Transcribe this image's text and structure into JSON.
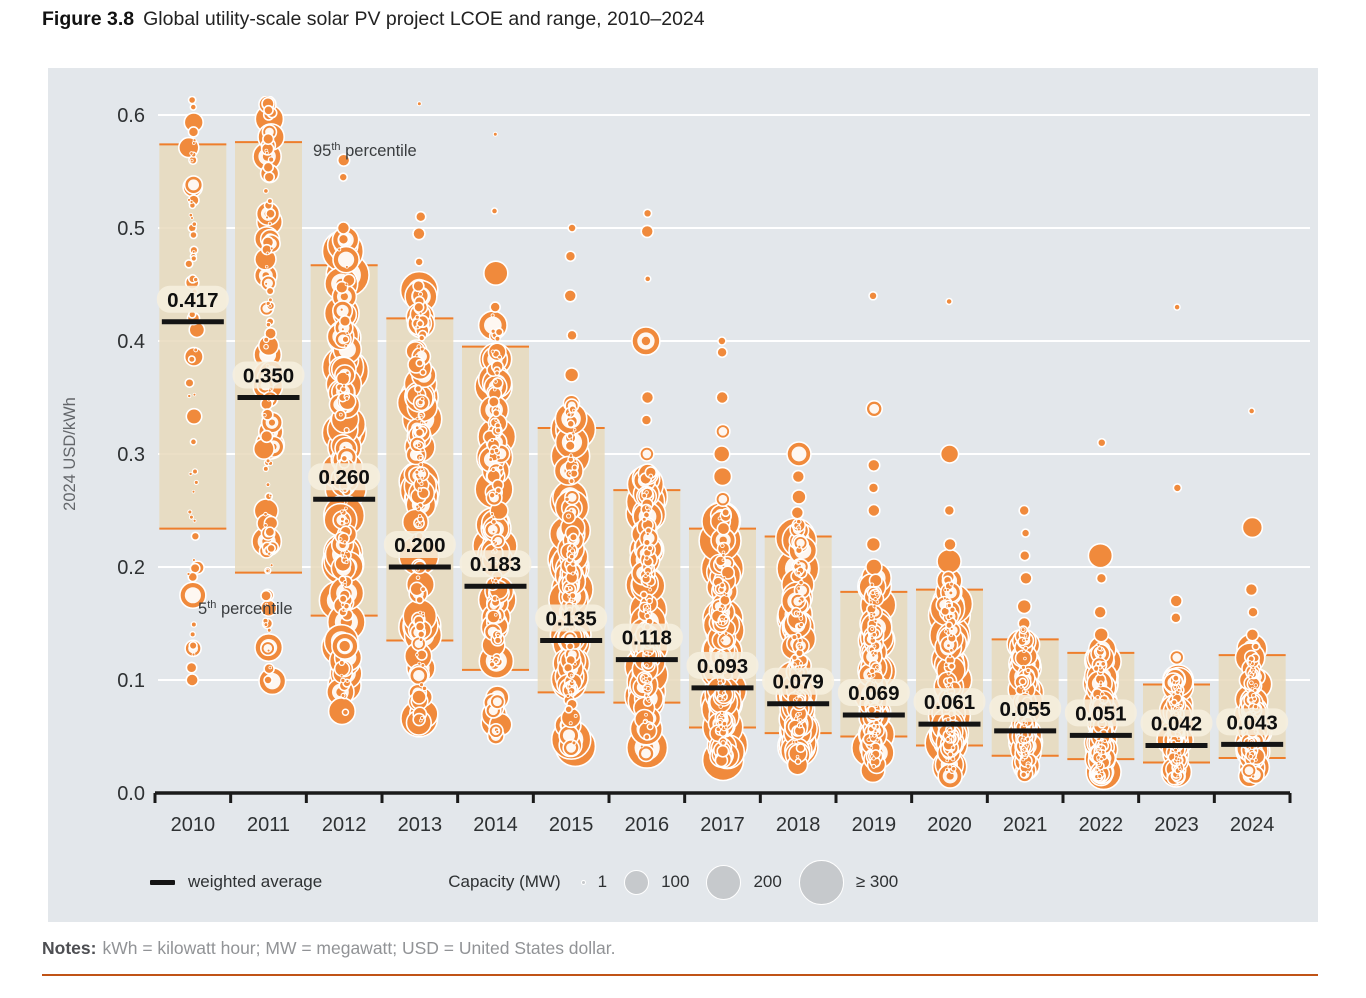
{
  "figure": {
    "label": "Figure 3.8",
    "title": "Global utility-scale solar PV project LCOE and range, 2010–2024"
  },
  "notes": {
    "label": "Notes:",
    "text": "kWh = kilowatt hour; MW = megawatt; USD = United States dollar."
  },
  "chart_data": {
    "type": "scatter",
    "subtype": "bubble-swarm-with-percentile-bands",
    "title": "Global utility-scale solar PV project LCOE and range, 2010–2024",
    "ylabel": "2024 USD/kWh",
    "xlabel": "",
    "ylim": [
      0.0,
      0.62
    ],
    "yticks": [
      0.0,
      0.1,
      0.2,
      0.3,
      0.4,
      0.5,
      0.6
    ],
    "ytick_labels": [
      "0.0",
      "0.1",
      "0.2",
      "0.3",
      "0.4",
      "0.5",
      "0.6"
    ],
    "grid": "horizontal-white",
    "categories": [
      "2010",
      "2011",
      "2012",
      "2013",
      "2014",
      "2015",
      "2016",
      "2017",
      "2018",
      "2019",
      "2020",
      "2021",
      "2022",
      "2023",
      "2024"
    ],
    "series": [
      {
        "name": "weighted average",
        "values": [
          0.417,
          0.35,
          0.26,
          0.2,
          0.183,
          0.135,
          0.118,
          0.093,
          0.079,
          0.069,
          0.061,
          0.055,
          0.051,
          0.042,
          0.043
        ]
      },
      {
        "name": "95th percentile",
        "values": [
          0.574,
          0.576,
          0.467,
          0.42,
          0.395,
          0.323,
          0.268,
          0.234,
          0.227,
          0.178,
          0.18,
          0.136,
          0.124,
          0.096,
          0.122
        ]
      },
      {
        "name": "5th percentile",
        "values": [
          0.234,
          0.195,
          0.157,
          0.135,
          0.109,
          0.089,
          0.08,
          0.058,
          0.053,
          0.05,
          0.042,
          0.033,
          0.03,
          0.027,
          0.031
        ]
      }
    ],
    "annotations": [
      {
        "id": "p95",
        "num": "95",
        "sup": "th",
        "rest": " percentile"
      },
      {
        "id": "p5",
        "num": "5",
        "sup": "th",
        "rest": " percentile"
      }
    ],
    "legend": {
      "position": "bottom-inside",
      "weighted_average_label": "weighted average",
      "capacity_label": "Capacity (MW)",
      "sizes": [
        {
          "label": "1",
          "diameter": 3
        },
        {
          "label": "100",
          "diameter": 23
        },
        {
          "label": "200",
          "diameter": 33
        },
        {
          "label": "≥ 300",
          "diameter": 43
        }
      ]
    },
    "bubble_layer": {
      "description": "each circle = one utility-scale solar PV project, circle area ~ capacity (MW); swarm regenerated procedurally from the percentile statistics",
      "seed": 20241,
      "years": [
        {
          "count": 55,
          "rmax": 11,
          "skew": 0.9,
          "outliers": [
            [
              0.607,
              3
            ],
            [
              0.585,
              5
            ],
            [
              0.56,
              4
            ],
            [
              0.52,
              3
            ],
            [
              0.5,
              4
            ],
            [
              0.475,
              3
            ],
            [
              0.455,
              4
            ],
            [
              0.175,
              13
            ],
            [
              0.128,
              8
            ],
            [
              0.1,
              6
            ]
          ]
        },
        {
          "count": 100,
          "rmax": 15,
          "skew": 0.95,
          "outliers": [
            [
              0.61,
              6
            ],
            [
              0.6,
              5
            ],
            [
              0.585,
              7
            ],
            [
              0.57,
              6
            ],
            [
              0.545,
              5
            ],
            [
              0.52,
              4
            ],
            [
              0.175,
              6
            ],
            [
              0.15,
              5
            ],
            [
              0.128,
              7
            ],
            [
              0.11,
              5
            ],
            [
              0.1,
              4
            ]
          ]
        },
        {
          "count": 150,
          "rmax": 22,
          "skew": 1.0,
          "outliers": [
            [
              0.56,
              6
            ],
            [
              0.545,
              4
            ],
            [
              0.5,
              6
            ],
            [
              0.49,
              5
            ],
            [
              0.13,
              6
            ],
            [
              0.11,
              8
            ],
            [
              0.095,
              5
            ]
          ]
        },
        {
          "count": 150,
          "rmax": 20,
          "skew": 1.05,
          "outliers": [
            [
              0.61,
              2
            ],
            [
              0.51,
              5
            ],
            [
              0.495,
              6
            ],
            [
              0.47,
              4
            ],
            [
              0.44,
              8
            ],
            [
              0.105,
              10
            ],
            [
              0.085,
              7
            ],
            [
              0.065,
              6
            ]
          ]
        },
        {
          "count": 140,
          "rmax": 19,
          "skew": 1.1,
          "outliers": [
            [
              0.583,
              2
            ],
            [
              0.515,
              3
            ],
            [
              0.46,
              12
            ],
            [
              0.43,
              5
            ],
            [
              0.075,
              9
            ],
            [
              0.055,
              7
            ]
          ]
        },
        {
          "count": 150,
          "rmax": 21,
          "skew": 1.15,
          "outliers": [
            [
              0.5,
              4
            ],
            [
              0.475,
              5
            ],
            [
              0.44,
              6
            ],
            [
              0.405,
              5
            ],
            [
              0.37,
              7
            ],
            [
              0.345,
              8
            ],
            [
              0.06,
              10
            ],
            [
              0.04,
              8
            ]
          ]
        },
        {
          "count": 150,
          "rmax": 21,
          "skew": 1.2,
          "outliers": [
            [
              0.513,
              4
            ],
            [
              0.497,
              6
            ],
            [
              0.455,
              3
            ],
            [
              0.4,
              14
            ],
            [
              0.35,
              6
            ],
            [
              0.33,
              5
            ],
            [
              0.3,
              7
            ],
            [
              0.055,
              9
            ],
            [
              0.035,
              8
            ]
          ]
        },
        {
          "count": 145,
          "rmax": 21,
          "skew": 1.25,
          "outliers": [
            [
              0.4,
              4
            ],
            [
              0.39,
              5
            ],
            [
              0.35,
              6
            ],
            [
              0.32,
              7
            ],
            [
              0.3,
              8
            ],
            [
              0.28,
              9
            ],
            [
              0.26,
              7
            ],
            [
              0.04,
              10
            ],
            [
              0.03,
              8
            ]
          ]
        },
        {
          "count": 140,
          "rmax": 21,
          "skew": 1.3,
          "outliers": [
            [
              0.3,
              12
            ],
            [
              0.28,
              6
            ],
            [
              0.262,
              7
            ],
            [
              0.248,
              6
            ],
            [
              0.035,
              9
            ],
            [
              0.025,
              10
            ]
          ]
        },
        {
          "count": 130,
          "rmax": 19,
          "skew": 1.3,
          "outliers": [
            [
              0.44,
              4
            ],
            [
              0.34,
              8
            ],
            [
              0.29,
              6
            ],
            [
              0.27,
              5
            ],
            [
              0.25,
              6
            ],
            [
              0.22,
              7
            ],
            [
              0.2,
              8
            ],
            [
              0.03,
              10
            ],
            [
              0.02,
              12
            ]
          ]
        },
        {
          "count": 130,
          "rmax": 22,
          "skew": 1.35,
          "outliers": [
            [
              0.435,
              3
            ],
            [
              0.3,
              9
            ],
            [
              0.25,
              5
            ],
            [
              0.22,
              6
            ],
            [
              0.205,
              12
            ],
            [
              0.025,
              14
            ],
            [
              0.015,
              12
            ]
          ]
        },
        {
          "count": 115,
          "rmax": 17,
          "skew": 1.3,
          "outliers": [
            [
              0.25,
              5
            ],
            [
              0.23,
              4
            ],
            [
              0.21,
              5
            ],
            [
              0.19,
              6
            ],
            [
              0.165,
              7
            ],
            [
              0.15,
              6
            ],
            [
              0.02,
              10
            ]
          ]
        },
        {
          "count": 125,
          "rmax": 20,
          "skew": 1.35,
          "outliers": [
            [
              0.31,
              4
            ],
            [
              0.21,
              12
            ],
            [
              0.19,
              5
            ],
            [
              0.16,
              6
            ],
            [
              0.14,
              7
            ],
            [
              0.018,
              11
            ]
          ]
        },
        {
          "count": 115,
          "rmax": 17,
          "skew": 1.3,
          "outliers": [
            [
              0.43,
              3
            ],
            [
              0.27,
              4
            ],
            [
              0.17,
              6
            ],
            [
              0.155,
              5
            ],
            [
              0.12,
              7
            ],
            [
              0.015,
              9
            ]
          ]
        },
        {
          "count": 105,
          "rmax": 17,
          "skew": 1.3,
          "outliers": [
            [
              0.338,
              3
            ],
            [
              0.235,
              10
            ],
            [
              0.18,
              6
            ],
            [
              0.16,
              5
            ],
            [
              0.14,
              6
            ],
            [
              0.02,
              9
            ]
          ]
        }
      ]
    },
    "colors": {
      "panel_bg": "#e3e7eb",
      "gridline": "#ffffff",
      "band_fill": "#e7d9bc",
      "band_edge": "#ee7e2b",
      "bubble": "#f08a3c",
      "bubble_stroke": "#ffffff",
      "weighted_average": "#141414",
      "value_pill": "#f6efde",
      "axis": "#1a1a1a",
      "tick_text": "#2e3133",
      "annotation_text": "#3a3d3f",
      "y_title_text": "#63666a",
      "legend_circle": "#c6c9cc"
    }
  }
}
